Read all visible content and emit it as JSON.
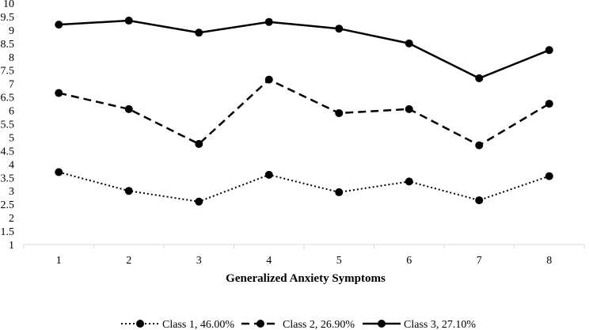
{
  "chart_data": {
    "type": "line",
    "title": "",
    "xlabel": "Generalized Anxiety Symptoms",
    "ylabel": "",
    "categories": [
      "1",
      "2",
      "3",
      "4",
      "5",
      "6",
      "7",
      "8"
    ],
    "ylim": [
      1,
      10
    ],
    "yticks": [
      "1",
      "1.5",
      "2",
      "2.5",
      "3",
      "3.5",
      "4",
      "4.5",
      "5",
      "5.5",
      "6",
      "6.5",
      "7",
      "7.5",
      "8",
      "8.5",
      "9",
      "9.5",
      "10"
    ],
    "grid": false,
    "legend_position": "bottom",
    "series": [
      {
        "name": "Class 1, 46.00%",
        "style": "dotted",
        "values": [
          3.7,
          3.0,
          2.6,
          3.6,
          2.95,
          3.35,
          2.65,
          3.55
        ]
      },
      {
        "name": "Class 2, 26.90%",
        "style": "dashed",
        "values": [
          6.65,
          6.05,
          4.75,
          7.15,
          5.9,
          6.05,
          4.7,
          6.25
        ]
      },
      {
        "name": "Class 3, 27.10%",
        "style": "solid",
        "values": [
          9.2,
          9.35,
          8.9,
          9.3,
          9.05,
          8.5,
          7.2,
          8.25
        ]
      }
    ]
  }
}
